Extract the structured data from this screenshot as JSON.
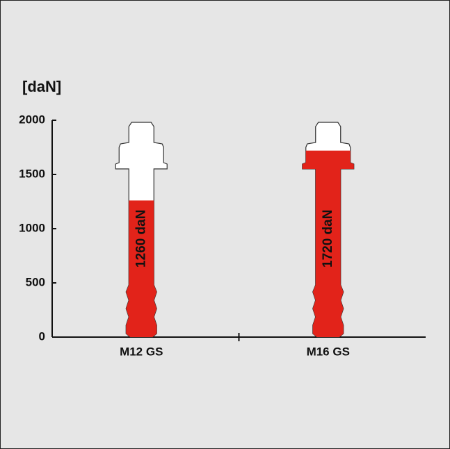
{
  "chart_data": {
    "type": "bolt-bar",
    "y_axis_label": "[daN]",
    "categories": [
      "M12 GS",
      "M16 GS"
    ],
    "values": [
      1260,
      1720
    ],
    "value_labels": [
      "1260 daN",
      "1720 daN"
    ],
    "color": "#e2231a",
    "ylim": [
      0,
      2000
    ],
    "yticks": [
      0,
      500,
      1000,
      1500,
      2000
    ]
  }
}
